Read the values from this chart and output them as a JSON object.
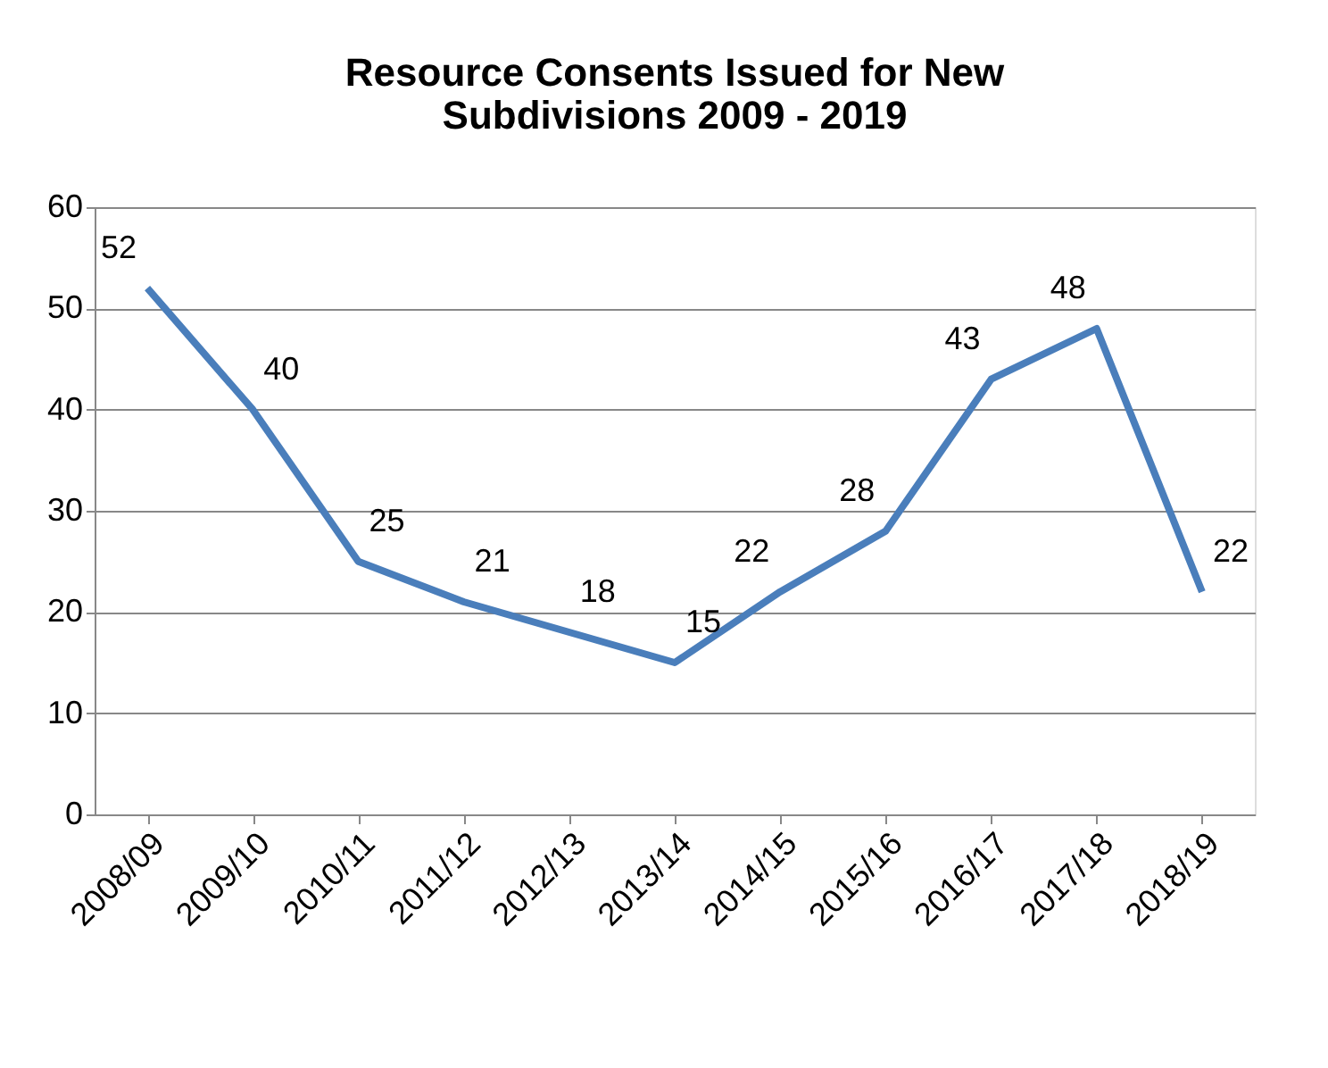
{
  "chart_data": {
    "type": "line",
    "title": "Resource Consents Issued for New Subdivisions  2009 - 2019",
    "categories": [
      "2008/09",
      "2009/10",
      "2010/11",
      "2011/12",
      "2012/13",
      "2013/14",
      "2014/15",
      "2015/16",
      "2016/17",
      "2017/18",
      "2018/19"
    ],
    "series": [
      {
        "color": "#4a7ebb",
        "values": [
          52,
          40,
          25,
          21,
          18,
          15,
          22,
          28,
          43,
          48,
          22
        ]
      }
    ],
    "ylim": [
      0,
      60
    ],
    "yticks": [
      0,
      10,
      20,
      30,
      40,
      50,
      60
    ],
    "grid": "y",
    "data_labels": true,
    "marker": "none",
    "line_style": "solid",
    "legend": false
  }
}
